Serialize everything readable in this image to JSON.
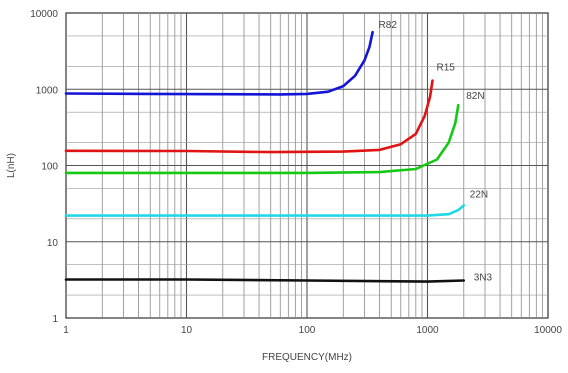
{
  "chart_data": {
    "type": "line",
    "xlabel": "FREQUENCY(MHz)",
    "ylabel": "L(nH)",
    "x_scale": "log",
    "y_scale": "log",
    "xlim": [
      1,
      10000
    ],
    "ylim": [
      1,
      10000
    ],
    "x_ticks": [
      "1",
      "10",
      "100",
      "1000",
      "10000"
    ],
    "y_ticks": [
      "1",
      "10",
      "100",
      "1000",
      "10000"
    ],
    "grid": true,
    "legend": "none (labels placed at right end of each curve)",
    "series": [
      {
        "name": "R82",
        "color": "#1414d8",
        "points": [
          [
            1,
            880
          ],
          [
            5,
            870
          ],
          [
            20,
            860
          ],
          [
            60,
            855
          ],
          [
            100,
            870
          ],
          [
            150,
            930
          ],
          [
            200,
            1100
          ],
          [
            250,
            1500
          ],
          [
            300,
            2400
          ],
          [
            330,
            3600
          ],
          [
            350,
            5600
          ]
        ]
      },
      {
        "name": "R15",
        "color": "#e01414",
        "points": [
          [
            1,
            156
          ],
          [
            10,
            155
          ],
          [
            50,
            150
          ],
          [
            200,
            152
          ],
          [
            400,
            160
          ],
          [
            600,
            190
          ],
          [
            800,
            260
          ],
          [
            950,
            450
          ],
          [
            1050,
            800
          ],
          [
            1100,
            1300
          ]
        ]
      },
      {
        "name": "82N",
        "color": "#14c814",
        "points": [
          [
            1,
            80
          ],
          [
            10,
            80
          ],
          [
            100,
            80
          ],
          [
            400,
            82
          ],
          [
            800,
            90
          ],
          [
            1200,
            120
          ],
          [
            1500,
            200
          ],
          [
            1700,
            360
          ],
          [
            1800,
            620
          ]
        ]
      },
      {
        "name": "22N",
        "color": "#22d8e8",
        "points": [
          [
            1,
            22
          ],
          [
            100,
            22
          ],
          [
            1000,
            22
          ],
          [
            1500,
            23
          ],
          [
            1800,
            26
          ],
          [
            2000,
            30
          ]
        ]
      },
      {
        "name": "3N3",
        "color": "#111111",
        "points": [
          [
            1,
            3.2
          ],
          [
            10,
            3.2
          ],
          [
            100,
            3.1
          ],
          [
            1000,
            3.0
          ],
          [
            2000,
            3.1
          ]
        ]
      }
    ]
  }
}
